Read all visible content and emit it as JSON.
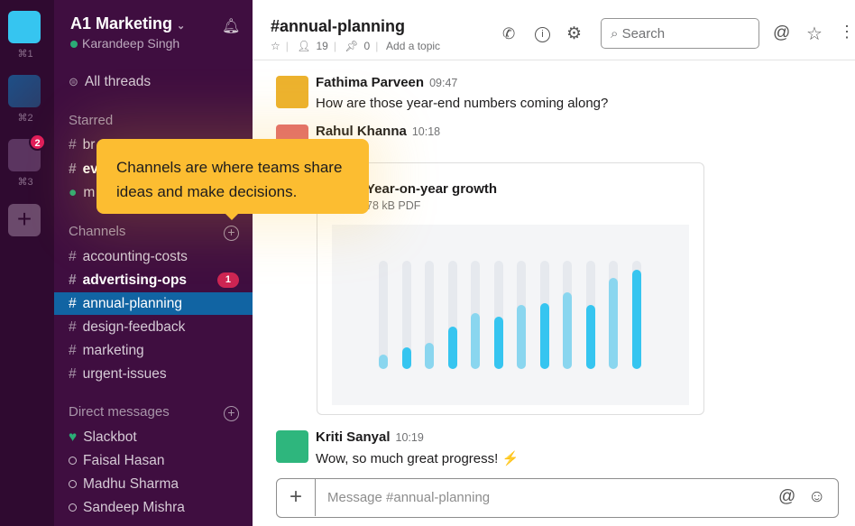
{
  "rail": {
    "workspaces": [
      {
        "shortcut": "⌘1",
        "color": "#36c5f0"
      },
      {
        "shortcut": "⌘2",
        "color": "#2a4b7c"
      },
      {
        "shortcut": "⌘3",
        "color": "#5b3560",
        "badge": "2"
      }
    ],
    "add_label": "+"
  },
  "sidebar": {
    "team": "A1 Marketing",
    "user": "Karandeep Singh",
    "all_threads": "All threads",
    "starred_label": "Starred",
    "starred": [
      {
        "label": "br",
        "prefix": "#"
      },
      {
        "label": "ev",
        "prefix": "#",
        "bold": true
      },
      {
        "label": "m",
        "prefix": "●"
      }
    ],
    "channels_label": "Channels",
    "channels": [
      {
        "label": "accounting-costs"
      },
      {
        "label": "advertising-ops",
        "bold": true,
        "badge": "1"
      },
      {
        "label": "annual-planning",
        "selected": true
      },
      {
        "label": "design-feedback"
      },
      {
        "label": "marketing"
      },
      {
        "label": "urgent-issues"
      }
    ],
    "dm_label": "Direct messages",
    "dms": [
      {
        "label": "Slackbot"
      },
      {
        "label": "Faisal Hasan"
      },
      {
        "label": "Madhu Sharma"
      },
      {
        "label": "Sandeep Mishra"
      }
    ]
  },
  "header": {
    "channel": "#annual-planning",
    "members": "19",
    "pins": "0",
    "topic": "Add a topic",
    "search_placeholder": "Search"
  },
  "messages": [
    {
      "author": "Fathima Parveen",
      "time": "09:47",
      "text": "How are those year-end numbers coming along?"
    },
    {
      "author": "Rahul Khanna",
      "time": "10:18"
    },
    {
      "author": "Kriti Sanyal",
      "time": "10:19",
      "text": "Wow, so much great progress! ⚡"
    }
  ],
  "attachment": {
    "title": "Year-on-year growth",
    "size": "78 kB PDF",
    "bar_levels": [
      0.13,
      0.2,
      0.24,
      0.39,
      0.52,
      0.48,
      0.59,
      0.61,
      0.71,
      0.59,
      0.84,
      0.92
    ],
    "colors": {
      "light": "#8ad6ef",
      "bright": "#36c5f0"
    }
  },
  "composer": {
    "placeholder": "Message #annual-planning"
  },
  "tooltip": {
    "text": "Channels are where teams share ideas and make decisions."
  },
  "colors": {
    "sidebar": "#3f0e40",
    "selected": "#1164a3",
    "tooltip": "#fcbd31"
  }
}
